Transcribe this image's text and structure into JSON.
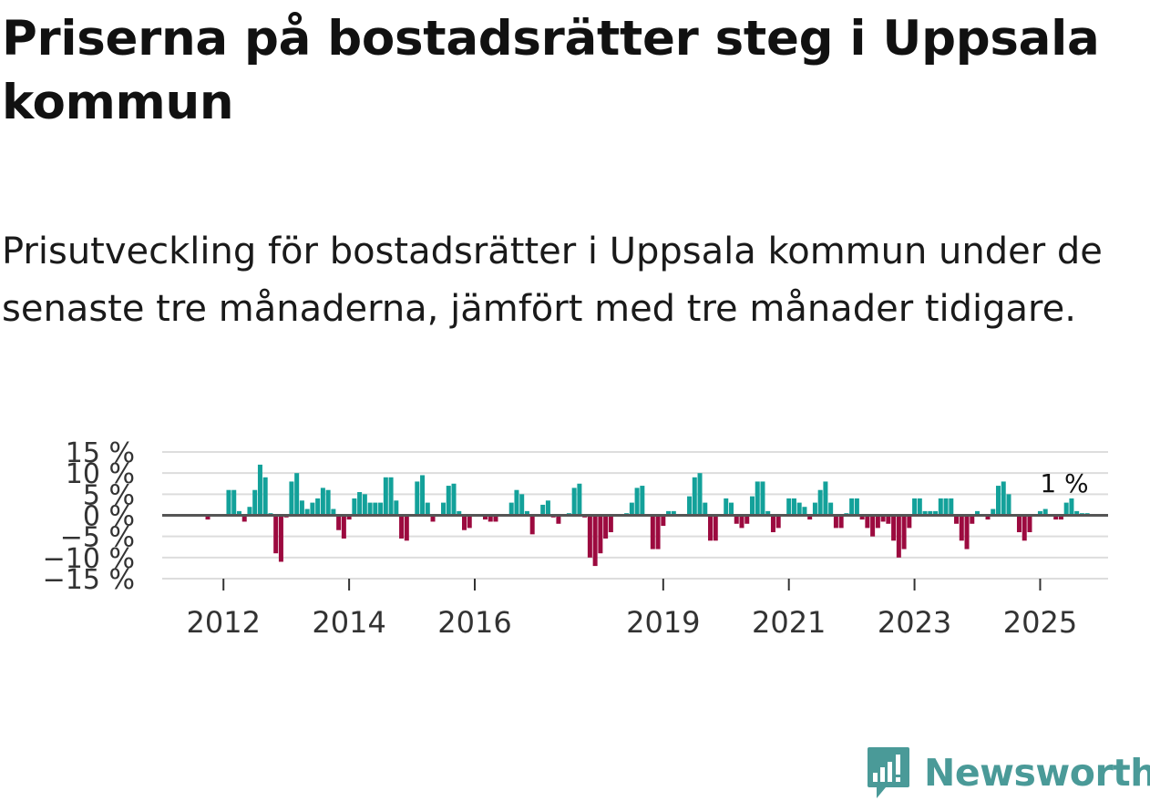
{
  "title": "Priserna på bostadsrätter steg i Uppsala kommun",
  "subtitle": "Prisutveckling för bostadsrätter i Uppsala kommun under de senaste tre månaderna, jämfört med tre månader tidigare.",
  "brand": "Newsworthy",
  "colors": {
    "positive": "#13a19a",
    "negative": "#9c0a3f",
    "grid": "#dddddd",
    "zero": "#555555",
    "axis": "#bbbbbb"
  },
  "chart_data": {
    "type": "bar",
    "title": "",
    "xlabel": "",
    "ylabel": "",
    "x_start": "2011-10",
    "frequency": "monthly",
    "ylim": [
      -15,
      15
    ],
    "y_ticks": [
      15,
      10,
      5,
      0,
      -5,
      -10,
      -15
    ],
    "y_tick_labels": [
      "15 %",
      "10 %",
      "5 %",
      "0 %",
      "−5 %",
      "−10 %",
      "−15 %"
    ],
    "x_ticks": [
      {
        "label": "2012",
        "date": "2012-01"
      },
      {
        "label": "2014",
        "date": "2014-01"
      },
      {
        "label": "2016",
        "date": "2016-01"
      },
      {
        "label": "2019",
        "date": "2019-01"
      },
      {
        "label": "2021",
        "date": "2021-01"
      },
      {
        "label": "2023",
        "date": "2023-01"
      },
      {
        "label": "2025",
        "date": "2025-01"
      }
    ],
    "end_label": "1 %",
    "values": [
      -1,
      0,
      0,
      0,
      6,
      6,
      1,
      -1.5,
      2,
      6,
      12,
      9,
      0.5,
      -9,
      -11,
      -0.5,
      8,
      10,
      3.5,
      1.5,
      3,
      4,
      6.5,
      6,
      1.5,
      -3.5,
      -5.5,
      -1,
      4,
      5.5,
      5,
      3,
      3,
      3,
      9,
      9,
      3.5,
      -5.5,
      -6,
      0,
      8,
      9.5,
      3,
      -1.5,
      0,
      3,
      7,
      7.5,
      1,
      -3.5,
      -3,
      0,
      0,
      -1,
      -1.5,
      -1.5,
      0,
      0,
      3,
      6,
      5,
      1,
      -4.5,
      0,
      2.5,
      3.5,
      -0.5,
      -2,
      0,
      0.5,
      6.5,
      7.5,
      -0.5,
      -10,
      -12,
      -9,
      -5.5,
      -4,
      0,
      0,
      0.5,
      3,
      6.5,
      7,
      0,
      -8,
      -8,
      -2.5,
      1,
      1,
      0,
      0,
      4.5,
      9,
      10,
      3,
      -6,
      -6,
      0,
      4,
      3,
      -2,
      -3,
      -2,
      4.5,
      8,
      8,
      1,
      -4,
      -3,
      0,
      4,
      4,
      3,
      2,
      -1,
      3,
      6,
      8,
      3,
      -3,
      -3,
      0.5,
      4,
      4,
      -1,
      -3,
      -5,
      -3,
      -1.5,
      -2,
      -6,
      -10,
      -8,
      -3,
      4,
      4,
      1,
      1,
      1,
      4,
      4,
      4,
      -2,
      -6,
      -8,
      -2,
      1,
      0,
      -1,
      1.5,
      7,
      8,
      5,
      0,
      -4,
      -6,
      -4,
      0,
      1,
      1.5,
      0,
      -1,
      -1,
      3,
      4,
      1,
      0.5,
      0.5
    ]
  }
}
